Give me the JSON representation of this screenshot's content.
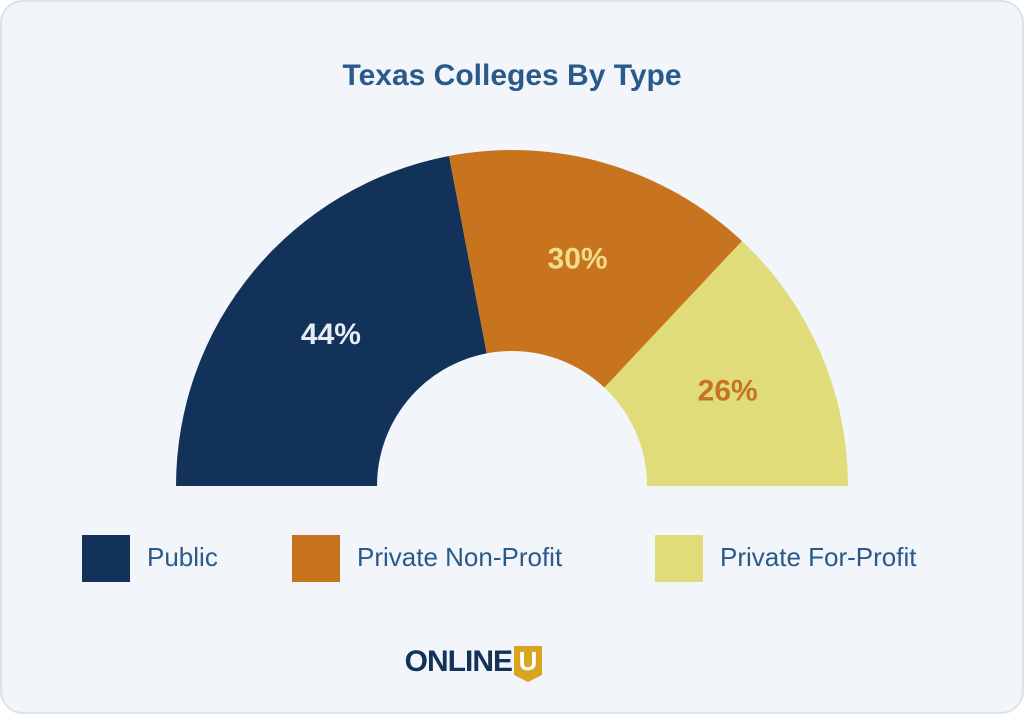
{
  "chart_data": {
    "type": "pie",
    "title": "Texas Colleges By Type",
    "categories": [
      "Public",
      "Private Non-Profit",
      "Private For-Profit"
    ],
    "values": [
      44,
      30,
      26
    ],
    "value_labels": [
      "44%",
      "30%",
      "26%"
    ],
    "colors": [
      "#12325a",
      "#c8731e",
      "#dfdc79"
    ],
    "label_colors": [
      "#e6ecf3",
      "#f0dc8a",
      "#c8731e"
    ]
  },
  "footer": {
    "logo_text": "ONLINE",
    "logo_mark": "U"
  }
}
